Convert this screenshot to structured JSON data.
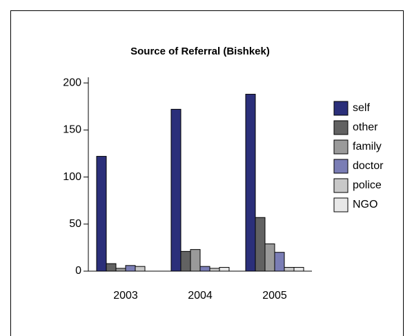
{
  "chart_data": {
    "type": "bar",
    "title": "Source of Referral (Bishkek)",
    "categories": [
      "2003",
      "2004",
      "2005"
    ],
    "series": [
      {
        "name": "self",
        "color": "#2b2f7a",
        "values": [
          122,
          172,
          188
        ]
      },
      {
        "name": "other",
        "color": "#626262",
        "values": [
          8,
          21,
          57
        ]
      },
      {
        "name": "family",
        "color": "#9a9a9a",
        "values": [
          3,
          23,
          29
        ]
      },
      {
        "name": "doctor",
        "color": "#7a7db5",
        "values": [
          6,
          5,
          20
        ]
      },
      {
        "name": "police",
        "color": "#c8c8c8",
        "values": [
          5,
          3,
          4
        ]
      },
      {
        "name": "NGO",
        "color": "#e8e8e8",
        "values": [
          0,
          4,
          4
        ]
      }
    ],
    "ylim": [
      0,
      206
    ],
    "yticks": [
      0,
      50,
      100,
      150,
      200
    ]
  }
}
